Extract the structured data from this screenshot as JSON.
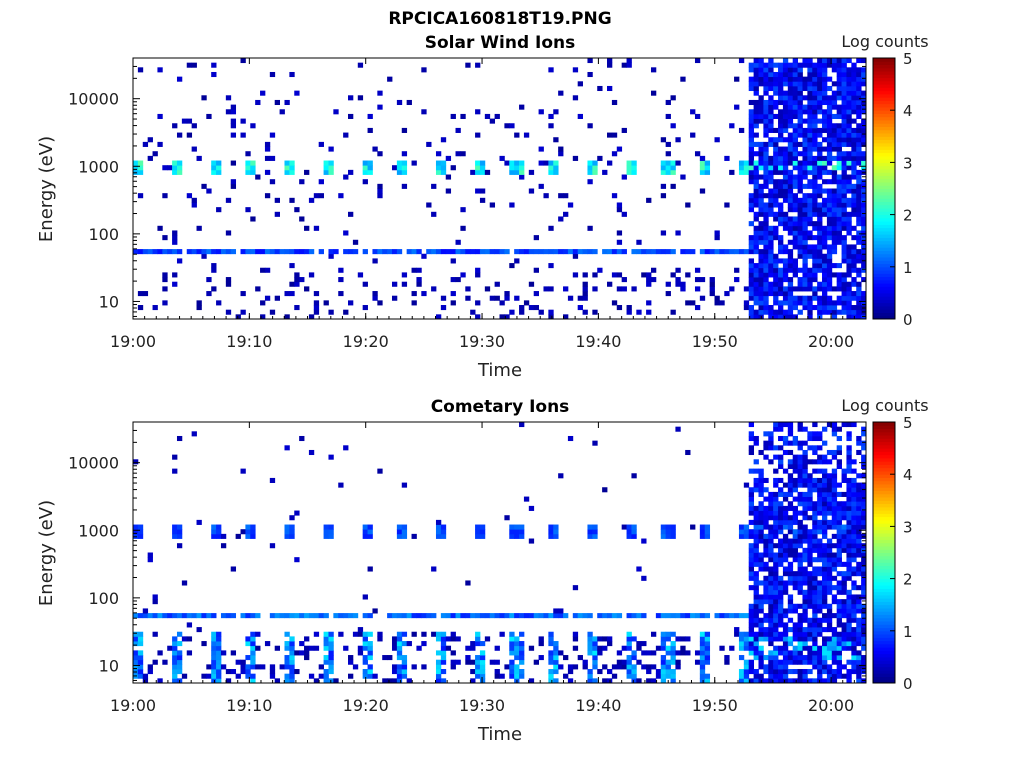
{
  "figure": {
    "title": "RPCICA160818T19.PNG"
  },
  "colors": {
    "colormap": [
      "#000080",
      "#0000ff",
      "#0080ff",
      "#00ffff",
      "#80ff80",
      "#ffff00",
      "#ff8000",
      "#ff0000",
      "#800000"
    ],
    "background": "#ffffff",
    "axis": "#000000"
  },
  "chart_data": [
    {
      "type": "heatmap",
      "title": "Solar Wind Ions",
      "xlabel": "Time",
      "ylabel": "Energy (eV)",
      "x_ticks": [
        "19:00",
        "19:10",
        "19:20",
        "19:30",
        "19:40",
        "19:50",
        "20:00"
      ],
      "xlim": [
        "19:00",
        "20:03"
      ],
      "y_scale": "log",
      "y_ticks": [
        10,
        100,
        1000,
        10000
      ],
      "y_tick_labels": [
        "10",
        "100",
        "1000",
        "10000"
      ],
      "ylim": [
        5.5,
        40000
      ],
      "colorbar": {
        "label": "Log counts",
        "range": [
          0,
          5
        ],
        "ticks": [
          "0",
          "1",
          "2",
          "3",
          "4",
          "5"
        ]
      },
      "data_gap_end": "19:53",
      "pulse_times_min": [
        0.5,
        3.7,
        7.0,
        10.2,
        13.5,
        16.7,
        20.0,
        23.2,
        26.5,
        29.7,
        33.0,
        36.2,
        39.5,
        42.7,
        46.0,
        49.2,
        52.5
      ],
      "features": {
        "peak_energy_eV": 1000,
        "peak_level": 2.3,
        "band_energy_eV": 55,
        "band_level": 1.1,
        "dense_region_start": "19:53"
      }
    },
    {
      "type": "heatmap",
      "title": "Cometary Ions",
      "xlabel": "Time",
      "ylabel": "Energy (eV)",
      "x_ticks": [
        "19:00",
        "19:10",
        "19:20",
        "19:30",
        "19:40",
        "19:50",
        "20:00"
      ],
      "xlim": [
        "19:00",
        "20:03"
      ],
      "y_scale": "log",
      "y_ticks": [
        10,
        100,
        1000,
        10000
      ],
      "y_tick_labels": [
        "10",
        "100",
        "1000",
        "10000"
      ],
      "ylim": [
        5.5,
        40000
      ],
      "colorbar": {
        "label": "Log counts",
        "range": [
          0,
          5
        ],
        "ticks": [
          "0",
          "1",
          "2",
          "3",
          "4",
          "5"
        ]
      },
      "data_gap_end": "19:53",
      "pulse_times_min": [
        0.5,
        3.7,
        7.0,
        10.2,
        13.5,
        16.7,
        20.0,
        23.2,
        26.5,
        29.7,
        33.0,
        36.2,
        39.5,
        42.7,
        46.0,
        49.2,
        52.5
      ],
      "features": {
        "peak_energy_eV": 1000,
        "peak_level": 1.2,
        "band_energy_eV": 55,
        "band_level": 1.3,
        "low_energy_blobs_eV": 18,
        "low_energy_level": 1.8,
        "dense_region_start": "19:53"
      }
    }
  ]
}
